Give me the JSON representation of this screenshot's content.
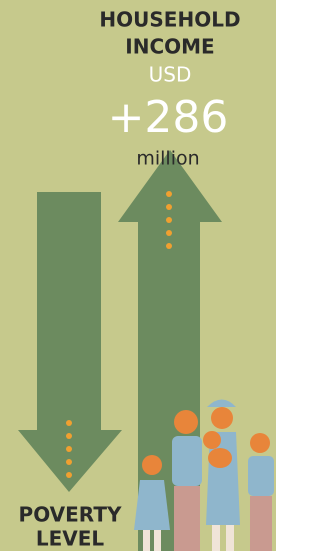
{
  "header": {
    "title_line1": "HOUSEHOLD",
    "title_line2": "INCOME",
    "currency": "USD",
    "amount": "+286",
    "unit": "million"
  },
  "footer": {
    "label_line1": "POVERTY",
    "label_line2": "LEVEL"
  }
}
